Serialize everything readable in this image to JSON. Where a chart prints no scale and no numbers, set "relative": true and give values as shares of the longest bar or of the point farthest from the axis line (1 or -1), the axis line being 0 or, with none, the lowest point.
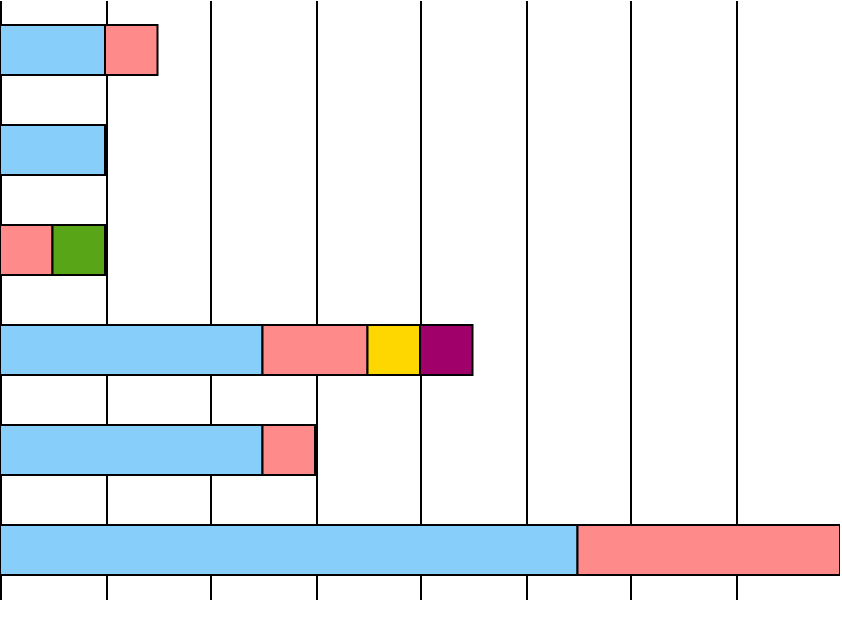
{
  "chart_data": {
    "type": "bar",
    "orientation": "horizontal",
    "stacked": true,
    "relative": true,
    "grid": "x",
    "categories": [
      null,
      null,
      null,
      null,
      null,
      null
    ],
    "series": [
      {
        "color": "#87cefa",
        "values": [
          0.125,
          0.125,
          null,
          0.3125,
          0.3125,
          0.6875
        ]
      },
      {
        "color": "#ff8a8a",
        "values": [
          0.0625,
          null,
          0.0625,
          0.125,
          0.0625,
          0.3125
        ]
      },
      {
        "color": "#58a618",
        "values": [
          null,
          null,
          0.0625,
          null,
          null,
          null
        ]
      },
      {
        "color": "#ffd700",
        "values": [
          null,
          null,
          null,
          0.0625,
          null,
          null
        ]
      },
      {
        "color": "#a0006a",
        "values": [
          null,
          null,
          null,
          0.0625,
          null,
          null
        ]
      }
    ]
  }
}
